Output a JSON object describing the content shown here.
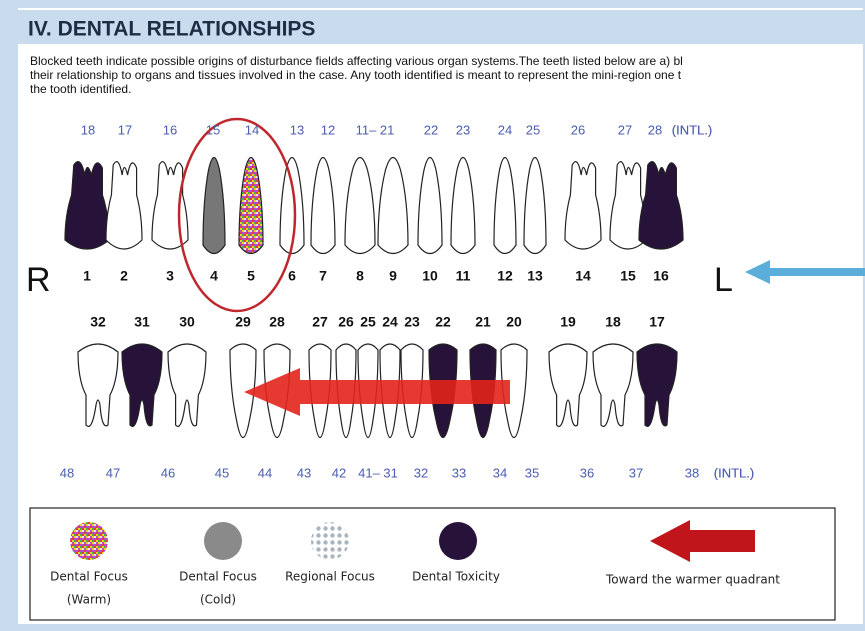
{
  "header": {
    "title": "IV. DENTAL RELATIONSHIPS"
  },
  "intro": {
    "lines": [
      "Blocked teeth indicate possible origins of disturbance fields affecting various organ systems.The teeth listed below are a) bl",
      "their relationship to organs and tissues involved in the case. Any tooth identified is meant to represent the mini-region one t",
      "the tooth identified."
    ]
  },
  "chart": {
    "upper_intl": [
      "18",
      "17",
      "16",
      "15",
      "14",
      "13",
      "12",
      "11– 21",
      "22",
      "23",
      "24",
      "25",
      "26",
      "27",
      "28",
      "(INTL.)"
    ],
    "upper_universal": [
      "1",
      "2",
      "3",
      "4",
      "5",
      "6",
      "7",
      "8",
      "9",
      "10",
      "11",
      "12",
      "13",
      "14",
      "15",
      "16"
    ],
    "side_right": "R",
    "side_left": "L",
    "lower_universal": [
      "32",
      "31",
      "30",
      "29",
      "28",
      "27",
      "26",
      "25",
      "24",
      "23",
      "22",
      "21",
      "20",
      "19",
      "18",
      "17"
    ],
    "lower_intl": [
      "48",
      "47",
      "46",
      "45",
      "44",
      "43",
      "42",
      "41– 31",
      "32",
      "33",
      "34",
      "35",
      "36",
      "37",
      "38",
      "(INTL.)"
    ]
  },
  "legend": {
    "items": [
      {
        "line1": "Dental Focus",
        "line2": "(Warm)"
      },
      {
        "line1": "Dental Focus",
        "line2": "(Cold)"
      },
      {
        "line1": "Regional Focus"
      },
      {
        "line1": "Dental Toxicity"
      }
    ],
    "arrow_label": "Toward the warmer quadrant"
  }
}
